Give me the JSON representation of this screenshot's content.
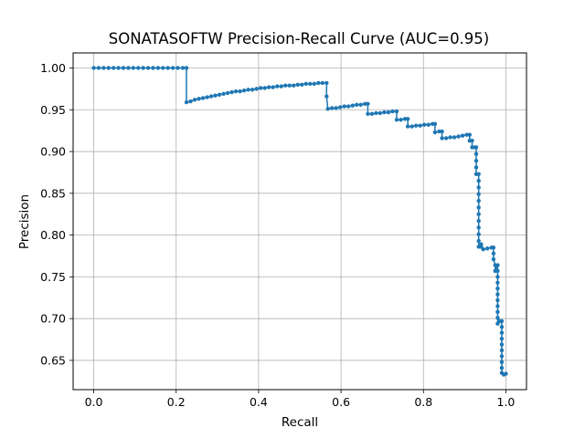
{
  "chart_data": {
    "type": "line",
    "title": "SONATASOFTW Precision-Recall Curve (AUC=0.95)",
    "xlabel": "Recall",
    "ylabel": "Precision",
    "xlim": [
      -0.05,
      1.05
    ],
    "ylim": [
      0.615,
      1.018
    ],
    "xticks": [
      "0.0",
      "0.2",
      "0.4",
      "0.6",
      "0.8",
      "1.0"
    ],
    "yticks": [
      "0.65",
      "0.70",
      "0.75",
      "0.80",
      "0.85",
      "0.90",
      "0.95",
      "1.00"
    ],
    "grid": true,
    "line_color": "#1f77b4",
    "marker": "circle",
    "series": [
      {
        "points": [
          [
            0.0,
            1.0
          ],
          [
            0.012,
            1.0
          ],
          [
            0.024,
            1.0
          ],
          [
            0.036,
            1.0
          ],
          [
            0.048,
            1.0
          ],
          [
            0.06,
            1.0
          ],
          [
            0.072,
            1.0
          ],
          [
            0.084,
            1.0
          ],
          [
            0.096,
            1.0
          ],
          [
            0.108,
            1.0
          ],
          [
            0.12,
            1.0
          ],
          [
            0.132,
            1.0
          ],
          [
            0.144,
            1.0
          ],
          [
            0.156,
            1.0
          ],
          [
            0.168,
            1.0
          ],
          [
            0.18,
            1.0
          ],
          [
            0.192,
            1.0
          ],
          [
            0.204,
            1.0
          ],
          [
            0.216,
            1.0
          ],
          [
            0.225,
            1.0
          ],
          [
            0.225,
            0.959
          ],
          [
            0.235,
            0.96
          ],
          [
            0.245,
            0.962
          ],
          [
            0.255,
            0.963
          ],
          [
            0.265,
            0.964
          ],
          [
            0.275,
            0.965
          ],
          [
            0.285,
            0.966
          ],
          [
            0.295,
            0.967
          ],
          [
            0.305,
            0.968
          ],
          [
            0.315,
            0.969
          ],
          [
            0.325,
            0.97
          ],
          [
            0.335,
            0.971
          ],
          [
            0.345,
            0.972
          ],
          [
            0.355,
            0.972
          ],
          [
            0.365,
            0.973
          ],
          [
            0.375,
            0.974
          ],
          [
            0.385,
            0.974
          ],
          [
            0.395,
            0.975
          ],
          [
            0.405,
            0.976
          ],
          [
            0.415,
            0.976
          ],
          [
            0.425,
            0.977
          ],
          [
            0.435,
            0.977
          ],
          [
            0.445,
            0.978
          ],
          [
            0.455,
            0.978
          ],
          [
            0.465,
            0.979
          ],
          [
            0.475,
            0.979
          ],
          [
            0.485,
            0.979
          ],
          [
            0.495,
            0.98
          ],
          [
            0.505,
            0.98
          ],
          [
            0.515,
            0.981
          ],
          [
            0.525,
            0.981
          ],
          [
            0.535,
            0.981
          ],
          [
            0.545,
            0.982
          ],
          [
            0.555,
            0.982
          ],
          [
            0.565,
            0.982
          ],
          [
            0.565,
            0.966
          ],
          [
            0.568,
            0.951
          ],
          [
            0.578,
            0.952
          ],
          [
            0.588,
            0.952
          ],
          [
            0.598,
            0.953
          ],
          [
            0.608,
            0.954
          ],
          [
            0.618,
            0.954
          ],
          [
            0.628,
            0.955
          ],
          [
            0.638,
            0.956
          ],
          [
            0.648,
            0.956
          ],
          [
            0.658,
            0.957
          ],
          [
            0.665,
            0.957
          ],
          [
            0.665,
            0.945
          ],
          [
            0.675,
            0.945
          ],
          [
            0.685,
            0.946
          ],
          [
            0.695,
            0.946
          ],
          [
            0.705,
            0.947
          ],
          [
            0.715,
            0.947
          ],
          [
            0.725,
            0.948
          ],
          [
            0.735,
            0.948
          ],
          [
            0.735,
            0.938
          ],
          [
            0.745,
            0.938
          ],
          [
            0.755,
            0.939
          ],
          [
            0.762,
            0.939
          ],
          [
            0.762,
            0.93
          ],
          [
            0.772,
            0.93
          ],
          [
            0.782,
            0.931
          ],
          [
            0.792,
            0.931
          ],
          [
            0.802,
            0.932
          ],
          [
            0.812,
            0.932
          ],
          [
            0.822,
            0.933
          ],
          [
            0.828,
            0.933
          ],
          [
            0.828,
            0.923
          ],
          [
            0.838,
            0.924
          ],
          [
            0.845,
            0.924
          ],
          [
            0.845,
            0.916
          ],
          [
            0.855,
            0.916
          ],
          [
            0.865,
            0.917
          ],
          [
            0.875,
            0.917
          ],
          [
            0.885,
            0.918
          ],
          [
            0.895,
            0.919
          ],
          [
            0.905,
            0.92
          ],
          [
            0.912,
            0.92
          ],
          [
            0.912,
            0.913
          ],
          [
            0.918,
            0.913
          ],
          [
            0.918,
            0.905
          ],
          [
            0.924,
            0.905
          ],
          [
            0.928,
            0.905
          ],
          [
            0.928,
            0.897
          ],
          [
            0.928,
            0.889
          ],
          [
            0.928,
            0.881
          ],
          [
            0.928,
            0.873
          ],
          [
            0.934,
            0.873
          ],
          [
            0.934,
            0.865
          ],
          [
            0.934,
            0.857
          ],
          [
            0.934,
            0.849
          ],
          [
            0.934,
            0.841
          ],
          [
            0.934,
            0.833
          ],
          [
            0.934,
            0.825
          ],
          [
            0.934,
            0.817
          ],
          [
            0.934,
            0.809
          ],
          [
            0.934,
            0.801
          ],
          [
            0.934,
            0.793
          ],
          [
            0.934,
            0.786
          ],
          [
            0.94,
            0.786
          ],
          [
            0.94,
            0.789
          ],
          [
            0.945,
            0.783
          ],
          [
            0.955,
            0.784
          ],
          [
            0.965,
            0.785
          ],
          [
            0.97,
            0.785
          ],
          [
            0.97,
            0.778
          ],
          [
            0.97,
            0.771
          ],
          [
            0.974,
            0.764
          ],
          [
            0.974,
            0.757
          ],
          [
            0.98,
            0.764
          ],
          [
            0.98,
            0.757
          ],
          [
            0.98,
            0.75
          ],
          [
            0.98,
            0.743
          ],
          [
            0.98,
            0.736
          ],
          [
            0.98,
            0.729
          ],
          [
            0.98,
            0.722
          ],
          [
            0.98,
            0.715
          ],
          [
            0.98,
            0.708
          ],
          [
            0.98,
            0.701
          ],
          [
            0.98,
            0.694
          ],
          [
            0.985,
            0.697
          ],
          [
            0.99,
            0.697
          ],
          [
            0.99,
            0.69
          ],
          [
            0.99,
            0.683
          ],
          [
            0.99,
            0.676
          ],
          [
            0.99,
            0.669
          ],
          [
            0.99,
            0.662
          ],
          [
            0.99,
            0.655
          ],
          [
            0.99,
            0.648
          ],
          [
            0.99,
            0.641
          ],
          [
            0.99,
            0.635
          ],
          [
            0.995,
            0.633
          ],
          [
            1.0,
            0.634
          ]
        ]
      }
    ]
  }
}
